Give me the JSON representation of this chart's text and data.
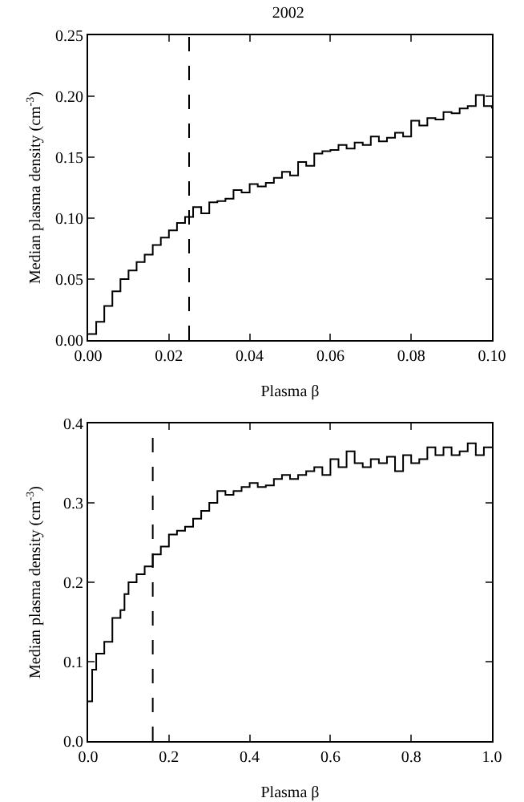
{
  "chart_data": [
    {
      "type": "step",
      "title": "2002",
      "xlabel": "Plasma β",
      "ylabel": "Median plasma density (cm$^{-3}$)",
      "grid": false,
      "xlim": [
        0,
        0.1
      ],
      "xticks": [
        {
          "value": 0,
          "label": "0.00"
        },
        0.02,
        0.04,
        0.06,
        0.08,
        {
          "value": 0.1,
          "label": "0.10"
        }
      ],
      "ylim": [
        0,
        0.25
      ],
      "yticks": [
        {
          "value": 0,
          "label": "0.00"
        },
        0.05,
        {
          "value": 0.1,
          "label": "0.10"
        },
        0.15,
        {
          "value": 0.2,
          "label": "0.20"
        },
        0.25
      ],
      "ref_lines": [
        {
          "axis": "x",
          "value": 0.025,
          "line_style": "dashed",
          "color": "#000000"
        }
      ],
      "series": [
        {
          "color": "#000000",
          "x": [
            0,
            0.002,
            0.004,
            0.006,
            0.008,
            0.01,
            0.012,
            0.014,
            0.016,
            0.018,
            0.02,
            0.022,
            0.024,
            0.026,
            0.028,
            0.03,
            0.032,
            0.034,
            0.036,
            0.038,
            0.04,
            0.042,
            0.044,
            0.046,
            0.048,
            0.05,
            0.052,
            0.054,
            0.056,
            0.058,
            0.06,
            0.062,
            0.064,
            0.066,
            0.068,
            0.07,
            0.072,
            0.074,
            0.076,
            0.078,
            0.08,
            0.082,
            0.084,
            0.086,
            0.088,
            0.09,
            0.092,
            0.094,
            0.096,
            0.098,
            0.1
          ],
          "values": [
            0.005,
            0.015,
            0.028,
            0.04,
            0.05,
            0.057,
            0.064,
            0.07,
            0.078,
            0.084,
            0.09,
            0.096,
            0.101,
            0.109,
            0.104,
            0.113,
            0.114,
            0.116,
            0.123,
            0.121,
            0.128,
            0.126,
            0.129,
            0.133,
            0.138,
            0.135,
            0.146,
            0.143,
            0.153,
            0.155,
            0.156,
            0.16,
            0.157,
            0.162,
            0.16,
            0.167,
            0.163,
            0.166,
            0.17,
            0.167,
            0.18,
            0.176,
            0.182,
            0.181,
            0.187,
            0.186,
            0.19,
            0.192,
            0.201,
            0.192,
            0.19
          ]
        }
      ]
    },
    {
      "type": "step",
      "xlabel": "Plasma β",
      "ylabel": "Median plasma density (cm$^{-3}$)",
      "grid": false,
      "xlim": [
        0,
        1
      ],
      "xticks": [
        {
          "value": 0,
          "label": "0.0"
        },
        0.2,
        0.4,
        0.6,
        0.8,
        {
          "value": 1,
          "label": "1.0"
        }
      ],
      "ylim": [
        0,
        0.4
      ],
      "yticks": [
        {
          "value": 0,
          "label": "0.0"
        },
        0.1,
        0.2,
        0.3,
        0.4
      ],
      "ref_lines": [
        {
          "axis": "x",
          "value": 0.16,
          "line_style": "dashed",
          "color": "#000000"
        }
      ],
      "series": [
        {
          "color": "#000000",
          "x": [
            0,
            0.01,
            0.02,
            0.04,
            0.06,
            0.08,
            0.09,
            0.1,
            0.12,
            0.14,
            0.16,
            0.18,
            0.2,
            0.22,
            0.24,
            0.26,
            0.28,
            0.3,
            0.32,
            0.34,
            0.36,
            0.38,
            0.4,
            0.42,
            0.44,
            0.46,
            0.48,
            0.5,
            0.52,
            0.54,
            0.56,
            0.58,
            0.6,
            0.62,
            0.64,
            0.66,
            0.68,
            0.7,
            0.72,
            0.74,
            0.76,
            0.78,
            0.8,
            0.82,
            0.84,
            0.86,
            0.88,
            0.9,
            0.92,
            0.94,
            0.96,
            0.98,
            1
          ],
          "values": [
            0.05,
            0.09,
            0.11,
            0.125,
            0.155,
            0.165,
            0.185,
            0.2,
            0.21,
            0.22,
            0.235,
            0.245,
            0.26,
            0.265,
            0.27,
            0.28,
            0.29,
            0.3,
            0.315,
            0.31,
            0.315,
            0.32,
            0.325,
            0.32,
            0.322,
            0.33,
            0.335,
            0.33,
            0.335,
            0.34,
            0.345,
            0.335,
            0.355,
            0.345,
            0.365,
            0.35,
            0.345,
            0.355,
            0.35,
            0.358,
            0.34,
            0.36,
            0.35,
            0.355,
            0.37,
            0.36,
            0.37,
            0.36,
            0.365,
            0.375,
            0.36,
            0.37,
            0.37
          ]
        }
      ]
    }
  ]
}
